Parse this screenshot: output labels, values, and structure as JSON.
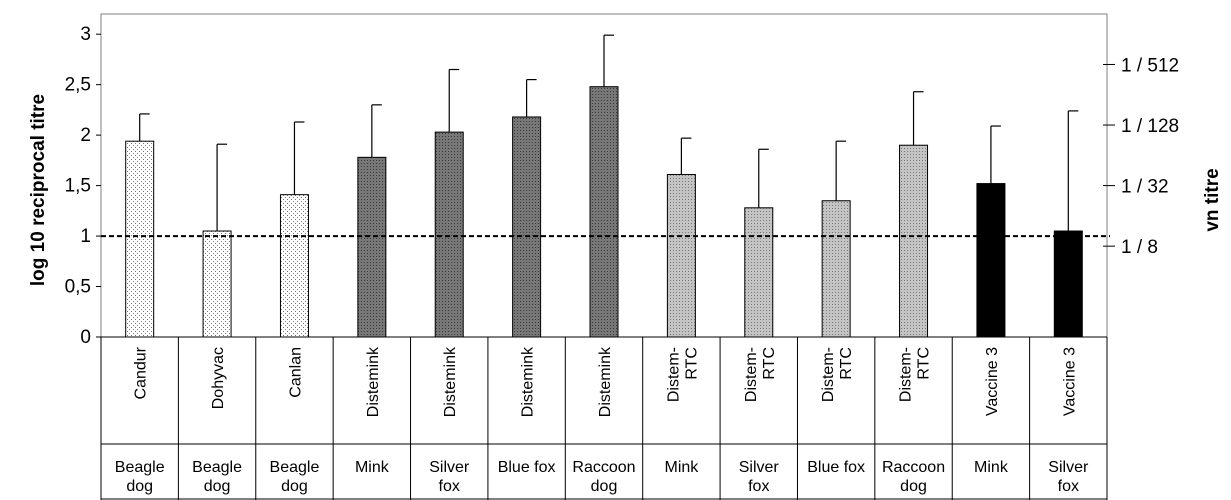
{
  "chart_data": {
    "type": "bar",
    "ylabel": "log 10 reciprocal titre",
    "ylabel_right": "vn titre",
    "ylim": [
      0,
      3.2
    ],
    "yticks": [
      "0",
      "0,5",
      "1",
      "1,5",
      "2",
      "2,5",
      "3"
    ],
    "ytick_values": [
      0,
      0.5,
      1,
      1.5,
      2,
      2.5,
      3
    ],
    "right_ticks": [
      {
        "label": "1 / 8",
        "value": 0.9
      },
      {
        "label": "1 / 32",
        "value": 1.5
      },
      {
        "label": "1 / 128",
        "value": 2.1
      },
      {
        "label": "1 / 512",
        "value": 2.7
      }
    ],
    "reference_line": 1,
    "colors": {
      "dotted_light": "#ffffff",
      "dotted_dark": "#707070",
      "dotted_mid": "#c0c0c0",
      "solid": "#000000"
    },
    "bars": [
      {
        "vaccine": "Candur",
        "vaccine_lines": [
          "Candur"
        ],
        "group_lines": [
          "Beagle",
          "dog"
        ],
        "value": 1.94,
        "error": 0.27,
        "style": "dotted_light"
      },
      {
        "vaccine": "Dohyvac",
        "vaccine_lines": [
          "Dohyvac"
        ],
        "group_lines": [
          "Beagle",
          "dog"
        ],
        "value": 1.05,
        "error": 0.86,
        "style": "dotted_light"
      },
      {
        "vaccine": "Canlan",
        "vaccine_lines": [
          "Canlan"
        ],
        "group_lines": [
          "Beagle",
          "dog"
        ],
        "value": 1.41,
        "error": 0.72,
        "style": "dotted_light"
      },
      {
        "vaccine": "Distemink",
        "vaccine_lines": [
          "Distemink"
        ],
        "group_lines": [
          "Mink"
        ],
        "value": 1.78,
        "error": 0.52,
        "style": "dotted_dark"
      },
      {
        "vaccine": "Distemink",
        "vaccine_lines": [
          "Distemink"
        ],
        "group_lines": [
          "Silver",
          "fox"
        ],
        "value": 2.03,
        "error": 0.62,
        "style": "dotted_dark"
      },
      {
        "vaccine": "Distemink",
        "vaccine_lines": [
          "Distemink"
        ],
        "group_lines": [
          "Blue fox"
        ],
        "value": 2.18,
        "error": 0.37,
        "style": "dotted_dark"
      },
      {
        "vaccine": "Distemink",
        "vaccine_lines": [
          "Distemink"
        ],
        "group_lines": [
          "Raccoon",
          "dog"
        ],
        "value": 2.48,
        "error": 0.51,
        "style": "dotted_dark"
      },
      {
        "vaccine": "Distem-RTC",
        "vaccine_lines": [
          "Distem-",
          "RTC"
        ],
        "group_lines": [
          "Mink"
        ],
        "value": 1.61,
        "error": 0.36,
        "style": "dotted_mid"
      },
      {
        "vaccine": "Distem-RTC",
        "vaccine_lines": [
          "Distem-",
          "RTC"
        ],
        "group_lines": [
          "Silver",
          "fox"
        ],
        "value": 1.28,
        "error": 0.58,
        "style": "dotted_mid"
      },
      {
        "vaccine": "Distem-RTC",
        "vaccine_lines": [
          "Distem-",
          "RTC"
        ],
        "group_lines": [
          "Blue fox"
        ],
        "value": 1.35,
        "error": 0.59,
        "style": "dotted_mid"
      },
      {
        "vaccine": "Distem-RTC",
        "vaccine_lines": [
          "Distem-",
          "RTC"
        ],
        "group_lines": [
          "Raccoon",
          "dog"
        ],
        "value": 1.9,
        "error": 0.53,
        "style": "dotted_mid"
      },
      {
        "vaccine": "Vaccine 3",
        "vaccine_lines": [
          "Vaccine 3"
        ],
        "group_lines": [
          "Mink"
        ],
        "value": 1.52,
        "error": 0.57,
        "style": "solid"
      },
      {
        "vaccine": "Vaccine 3",
        "vaccine_lines": [
          "Vaccine 3"
        ],
        "group_lines": [
          "Silver",
          "fox"
        ],
        "value": 1.05,
        "error": 1.19,
        "style": "solid"
      }
    ]
  }
}
